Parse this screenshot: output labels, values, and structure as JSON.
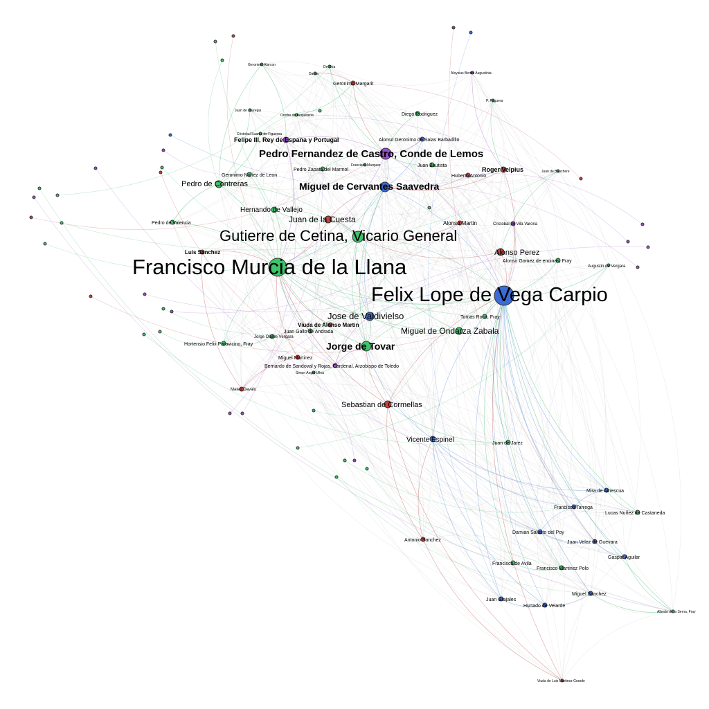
{
  "colors": {
    "green": "#3cc46a",
    "blue": "#3a6bd6",
    "red": "#c8413b",
    "purple": "#9b4fd0",
    "edge_green": "#48c07a",
    "edge_blue": "#5b8fd8",
    "edge_red": "#c25555",
    "edge_purple": "#a56bd0",
    "edge_gray": "#9a9a9a"
  },
  "nodes": [
    {
      "id": "murcia",
      "label": "Francisco Murcia de la Llana",
      "color": "green"
    },
    {
      "id": "lope",
      "label": "Felix Lope de Vega Carpio",
      "color": "blue"
    },
    {
      "id": "cetina",
      "label": "Gutierre de Cetina, Vicario General",
      "color": "green"
    },
    {
      "id": "castro",
      "label": "Pedro Fernandez de Castro, Conde de Lemos",
      "color": "purple"
    },
    {
      "id": "cervantes",
      "label": "Miguel de Cervantes Saavedra",
      "color": "blue"
    },
    {
      "id": "valdivielso",
      "label": "Jose de Valdivielso",
      "color": "blue"
    },
    {
      "id": "tovar",
      "label": "Jorge de Tovar",
      "color": "green"
    },
    {
      "id": "ondarza",
      "label": "Miguel de Ondarza Zabala",
      "color": "green"
    },
    {
      "id": "cuesta",
      "label": "Juan de la Cuesta",
      "color": "red"
    },
    {
      "id": "cormellas",
      "label": "Sebastian de Cormellas",
      "color": "red"
    },
    {
      "id": "contreras",
      "label": "Pedro de Contreras",
      "color": "green"
    },
    {
      "id": "vallejo",
      "label": "Hernando de Vallejo",
      "color": "green"
    },
    {
      "id": "aperez",
      "label": "Alonso Perez",
      "color": "red"
    },
    {
      "id": "espinel",
      "label": "Vicente Espinel",
      "color": "blue"
    },
    {
      "id": "felipe",
      "label": "Felipe III, Rey de Espana y Portugal",
      "color": "purple"
    },
    {
      "id": "velpius",
      "label": "Roger Velpius",
      "color": "red"
    },
    {
      "id": "lsanchez",
      "label": "Luis Sanchez",
      "color": "red"
    },
    {
      "id": "vamartin",
      "label": "Viuda de Alonso Martin",
      "color": "red"
    },
    {
      "id": "salas",
      "label": "Alonso Geronimo de Salas Barbadillo",
      "color": "blue"
    },
    {
      "id": "zapata",
      "label": "Pedro Zapata del Marmol",
      "color": "green"
    },
    {
      "id": "gnunez",
      "label": "Geronimo Nuñez de Leon",
      "color": "green"
    },
    {
      "id": "valencia",
      "label": "Pedro de Valencia",
      "color": "green"
    },
    {
      "id": "amartin",
      "label": "Alonso Martin",
      "color": "red"
    },
    {
      "id": "gomez",
      "label": "Alonso Gomez de encinas, Fray",
      "color": "green"
    },
    {
      "id": "vergara",
      "label": "Augustin de Vergara",
      "color": "green"
    },
    {
      "id": "roca",
      "label": "Tomas Roca, Fray",
      "color": "green"
    },
    {
      "id": "andrada",
      "label": "Juan Gallo de Andrada",
      "color": "green"
    },
    {
      "id": "paravicino",
      "label": "Hortensio Felix Paravicino, Fray",
      "color": "green"
    },
    {
      "id": "jvergara",
      "label": "Jorge Olalde Vergara",
      "color": "green"
    },
    {
      "id": "mmartinez",
      "label": "Miguel Martinez",
      "color": "red"
    },
    {
      "id": "sandoval",
      "label": "Bernardo de Sandoval y Rojas, Cardenal, Arzobispo de Toledo",
      "color": "purple"
    },
    {
      "id": "ulloa",
      "label": "Simon Angel Ulloa",
      "color": "green"
    },
    {
      "id": "jarez",
      "label": "Juan de Jarez",
      "color": "green"
    },
    {
      "id": "mira",
      "label": "Mira de Amescua",
      "color": "blue"
    },
    {
      "id": "tarrega",
      "label": "Francisco Tarrega",
      "color": "blue"
    },
    {
      "id": "castaneda",
      "label": "Lucas Nuñez de Castaneda",
      "color": "green"
    },
    {
      "id": "poy",
      "label": "Damian Salusto del Poy",
      "color": "blue"
    },
    {
      "id": "guevara",
      "label": "Juan Velez de Guevara",
      "color": "blue"
    },
    {
      "id": "aguilar",
      "label": "Gaspar Aguilar",
      "color": "blue"
    },
    {
      "id": "avila",
      "label": "Francisco de Avila",
      "color": "green"
    },
    {
      "id": "polo",
      "label": "Francisco Martinez Polo",
      "color": "green"
    },
    {
      "id": "asanchez",
      "label": "Antonio Sanchez",
      "color": "red"
    },
    {
      "id": "grajales",
      "label": "Juan Grajales",
      "color": "blue"
    },
    {
      "id": "velarde",
      "label": "Hurtado de Velarde",
      "color": "blue"
    },
    {
      "id": "msanchez",
      "label": "Miguel Sanchez",
      "color": "blue"
    },
    {
      "id": "alberto",
      "label": "Alberto de la Serna, Fray",
      "color": "green"
    },
    {
      "id": "viuda_luis",
      "label": "Viuda de Luis Martinez Grande",
      "color": "red"
    },
    {
      "id": "margarit",
      "label": "Geronimo Margarit",
      "color": "red"
    },
    {
      "id": "alarcon",
      "label": "Geronimo Alarcon",
      "color": "green"
    },
    {
      "id": "davila",
      "label": "Davila",
      "color": "green"
    },
    {
      "id": "deoba",
      "label": "De Oba",
      "color": "green"
    },
    {
      "id": "bautista",
      "label": "Juan Bautista",
      "color": "green"
    },
    {
      "id": "hantonio",
      "label": "Huberto Antonio",
      "color": "red"
    },
    {
      "id": "rodriguez",
      "label": "Diego Rodriguez",
      "color": "green"
    },
    {
      "id": "figueroa",
      "label": "Cristobal Suarez de Figueroa",
      "color": "green"
    },
    {
      "id": "marquez",
      "label": "Francisco Marquez",
      "color": "green"
    },
    {
      "id": "jauregui",
      "label": "Juan de Jauregui",
      "color": "green"
    },
    {
      "id": "paravicino2",
      "label": "Onofre de Bequeteria",
      "color": "green"
    },
    {
      "id": "aloysius",
      "label": "Aloysius Bertini Augustinia",
      "color": "purple"
    },
    {
      "id": "paguera",
      "label": "P. Paguera",
      "color": "green"
    },
    {
      "id": "jauche",
      "label": "Juan de Bauchere",
      "color": "green"
    },
    {
      "id": "catvila",
      "label": "Cristobal de Vila Varona",
      "color": "purple"
    },
    {
      "id": "davalos",
      "label": "Mateo Davalo",
      "color": "red"
    }
  ]
}
